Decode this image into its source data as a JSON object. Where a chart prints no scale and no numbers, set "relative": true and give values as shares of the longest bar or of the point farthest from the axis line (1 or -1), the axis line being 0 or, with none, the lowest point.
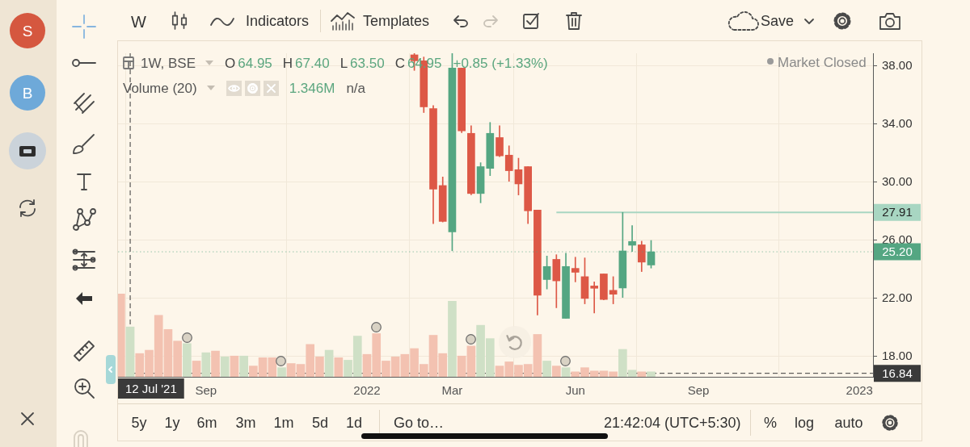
{
  "chart_data": [
    {
      "type": "candlestick",
      "annotations": [
        "W",
        "Indicators",
        "Templates",
        "Save",
        "1W, BSE",
        "O",
        "64.95",
        "H",
        "67.40",
        "L",
        "63.50",
        "C",
        "64.95",
        "+0.85 (+1.33%)",
        "Market Closed",
        "Volume (20)",
        "1.346M",
        "n/a",
        "5y",
        "1y",
        "6m",
        "3m",
        "1m",
        "5d",
        "1d",
        "Go to…",
        "21:42:04 (UTC+5:30)",
        "%",
        "log",
        "auto",
        "S",
        "B"
      ],
      "series": [
        {
          "x": [
            "2022-02-07",
            "2022-02-14",
            "2022-02-21",
            "2022-02-28",
            "2022-03-07",
            "2022-03-14",
            "2022-03-21",
            "2022-03-28",
            "2022-04-04",
            "2022-04-11",
            "2022-04-18",
            "2022-04-25",
            "2022-05-02",
            "2022-05-09",
            "2022-05-16",
            "2022-05-23",
            "2022-05-30",
            "2022-06-06",
            "2022-06-13",
            "2022-06-20",
            "2022-06-27",
            "2022-07-04",
            "2022-07-11",
            "2022-07-18",
            "2022-07-25",
            "2022-08-01"
          ],
          "ohlc": [
            [
              38.75,
              38.85,
              37.68,
              38.34
            ],
            [
              38.34,
              38.6,
              34.78,
              35.17
            ],
            [
              35.06,
              35.26,
              27.14,
              29.51
            ],
            [
              29.76,
              30.35,
              27.25,
              27.29
            ],
            [
              26.57,
              38.85,
              25.27,
              37.84
            ],
            [
              37.84,
              37.84,
              33.4,
              33.52
            ],
            [
              33.35,
              33.87,
              29.12,
              29.21
            ],
            [
              29.21,
              31.33,
              28.57,
              31.06
            ],
            [
              30.94,
              34.1,
              30.44,
              33.35
            ],
            [
              33.06,
              33.87,
              31.75,
              31.8
            ],
            [
              31.85,
              32.49,
              30.05,
              30.78
            ],
            [
              30.85,
              31.64,
              29.11,
              29.87
            ],
            [
              31.06,
              31.06,
              27.14,
              28.02
            ],
            [
              28.07,
              28.07,
              20.85,
              22.21
            ],
            [
              23.29,
              24.91,
              22.64,
              24.19
            ],
            [
              24.68,
              25.0,
              21.35,
              23.2
            ],
            [
              20.62,
              25.1,
              20.62,
              24.19
            ],
            [
              24.06,
              24.83,
              23.13,
              23.79
            ],
            [
              23.49,
              24.78,
              21.62,
              21.99
            ],
            [
              22.85,
              23.13,
              20.99,
              22.69
            ],
            [
              23.68,
              23.68,
              21.89,
              21.92
            ],
            [
              22.55,
              23.49,
              21.62,
              22.28
            ],
            [
              22.71,
              27.91,
              22.06,
              25.26
            ],
            [
              25.65,
              27.0,
              25.22,
              25.91
            ],
            [
              25.68,
              25.93,
              23.84,
              24.49
            ],
            [
              24.29,
              25.98,
              24.08,
              25.2
            ]
          ],
          "colors": [
            "#dd5846",
            "#dd5846",
            "#dd5846",
            "#dd5846",
            "#54a682",
            "#dd5846",
            "#dd5846",
            "#54a682",
            "#54a682",
            "#dd5846",
            "#dd5846",
            "#dd5846",
            "#dd5846",
            "#dd5846",
            "#54a682",
            "#dd5846",
            "#54a682",
            "#dd5846",
            "#dd5846",
            "#dd5846",
            "#dd5846",
            "#dd5846",
            "#54a682",
            "#54a682",
            "#dd5846",
            "#54a682"
          ]
        },
        {
          "type": "line",
          "x": [
            "2022-05-23",
            "2023-01-12"
          ],
          "values": [
            27.91,
            27.91
          ],
          "color": "#a8d6c2",
          "value_labels": [
            null,
            "27.91"
          ]
        }
      ],
      "xlim": [
        "2021-07-03",
        "2023-01-12"
      ],
      "xticks": [
        {
          "value": "2021-09-06",
          "label": "Sep"
        },
        {
          "value": "2022-01-03",
          "label": "2022"
        },
        {
          "value": "2022-03-07",
          "label": "Mar"
        },
        {
          "value": "2022-06-06",
          "label": "Jun"
        },
        {
          "value": "2022-09-05",
          "label": "Sep"
        },
        {
          "value": "2023-01-02",
          "label": "2023"
        }
      ],
      "ylim": [
        16.6,
        38.86
      ],
      "yticks": [
        {
          "value": 18,
          "label": "18.00"
        },
        {
          "value": 22,
          "label": "22.00"
        },
        {
          "value": 26,
          "label": "26.00"
        },
        {
          "value": 30,
          "label": "30.00"
        },
        {
          "value": 34,
          "label": "34.00"
        },
        {
          "value": 38,
          "label": "38.00"
        }
      ],
      "ref_lines": [
        {
          "axis": "y",
          "value": 25.2,
          "label": "25.20",
          "color": "#54a682",
          "line_style": "dotted"
        },
        {
          "axis": "y",
          "value": 16.84,
          "label": "16.84",
          "color": "#3a3a3a",
          "line_style": "dashed"
        },
        {
          "axis": "x",
          "value": "2021-07-12",
          "label": "12 Jul '21",
          "color": "#3a3a3a",
          "line_style": "dashed"
        }
      ],
      "grid": true
    },
    {
      "type": "bar",
      "relative": true,
      "x": [
        "2021-07-05",
        "2021-07-12",
        "2021-07-19",
        "2021-07-26",
        "2021-08-02",
        "2021-08-09",
        "2021-08-16",
        "2021-08-23",
        "2021-08-30",
        "2021-09-06",
        "2021-09-13",
        "2021-09-20",
        "2021-09-27",
        "2021-10-04",
        "2021-10-11",
        "2021-10-18",
        "2021-10-25",
        "2021-11-01",
        "2021-11-08",
        "2021-11-15",
        "2021-11-22",
        "2021-11-29",
        "2021-12-06",
        "2021-12-13",
        "2021-12-20",
        "2021-12-27",
        "2022-01-03",
        "2022-01-10",
        "2022-01-17",
        "2022-01-24",
        "2022-01-31",
        "2022-02-07",
        "2022-02-14",
        "2022-02-21",
        "2022-02-28",
        "2022-03-07",
        "2022-03-14",
        "2022-03-21",
        "2022-03-28",
        "2022-04-04",
        "2022-04-11",
        "2022-04-18",
        "2022-04-25",
        "2022-05-02",
        "2022-05-09",
        "2022-05-16",
        "2022-05-23",
        "2022-05-30",
        "2022-06-06",
        "2022-06-13",
        "2022-06-20",
        "2022-06-27",
        "2022-07-04",
        "2022-07-11",
        "2022-07-18",
        "2022-07-25",
        "2022-08-01"
      ],
      "values": [
        1.0,
        0.6,
        0.28,
        0.32,
        0.74,
        0.57,
        0.43,
        0.4,
        0.19,
        0.29,
        0.31,
        0.24,
        0.25,
        0.25,
        0.13,
        0.23,
        0.23,
        0.11,
        0.16,
        0.15,
        0.39,
        0.24,
        0.32,
        0.23,
        0.2,
        0.49,
        0.27,
        0.52,
        0.19,
        0.24,
        0.27,
        0.34,
        0.15,
        0.5,
        0.28,
        0.91,
        0.25,
        0.37,
        0.62,
        0.46,
        0.13,
        0.18,
        0.14,
        0.15,
        0.51,
        0.19,
        0.13,
        0.11,
        0.06,
        0.11,
        0.07,
        0.07,
        0.06,
        0.33,
        0.08,
        0.06,
        0.06
      ],
      "colors": [
        "#f3c2b1",
        "#cfe0c6",
        "#f3c2b1",
        "#f3c2b1",
        "#f3c2b1",
        "#f3c2b1",
        "#f3c2b1",
        "#cfe0c6",
        "#f3c2b1",
        "#cfe0c6",
        "#f3c2b1",
        "#cfe0c6",
        "#f3c2b1",
        "#cfe0c6",
        "#f3c2b1",
        "#f3c2b1",
        "#f3c2b1",
        "#cfe0c6",
        "#f3c2b1",
        "#f3c2b1",
        "#f3c2b1",
        "#f3c2b1",
        "#cfe0c6",
        "#f3c2b1",
        "#cfe0c6",
        "#cfe0c6",
        "#f3c2b1",
        "#f3c2b1",
        "#f3c2b1",
        "#f3c2b1",
        "#f3c2b1",
        "#f3c2b1",
        "#f3c2b1",
        "#f3c2b1",
        "#f3c2b1",
        "#cfe0c6",
        "#f3c2b1",
        "#f3c2b1",
        "#cfe0c6",
        "#cfe0c6",
        "#f3c2b1",
        "#f3c2b1",
        "#f3c2b1",
        "#f3c2b1",
        "#f3c2b1",
        "#cfe0c6",
        "#f3c2b1",
        "#cfe0c6",
        "#f3c2b1",
        "#f3c2b1",
        "#f3c2b1",
        "#f3c2b1",
        "#f3c2b1",
        "#cfe0c6",
        "#cfe0c6",
        "#f3c2b1",
        "#cfe0c6"
      ],
      "xlim": [
        "2021-07-03",
        "2023-01-12"
      ]
    }
  ]
}
